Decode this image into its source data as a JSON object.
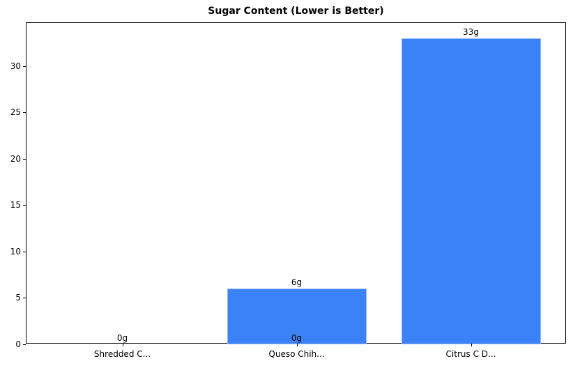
{
  "chart_data": {
    "type": "bar",
    "title": "Sugar Content (Lower is Better)",
    "xlabel": "",
    "ylabel": "",
    "categories": [
      "Shredded C...",
      "Queso Chih...",
      "Citrus C D..."
    ],
    "values": [
      0,
      6,
      33
    ],
    "bar_labels": [
      "0g",
      "6g",
      "33g"
    ],
    "extra_labels": [
      {
        "category": "Queso Chih...",
        "label": "0g",
        "position": "base"
      }
    ],
    "ylim": [
      0,
      34.65
    ],
    "yticks": [
      0,
      5,
      10,
      15,
      20,
      25,
      30
    ],
    "grid": false,
    "legend": null,
    "bar_color": "#3b82f6",
    "bar_edge_color": "#93b8f5"
  }
}
